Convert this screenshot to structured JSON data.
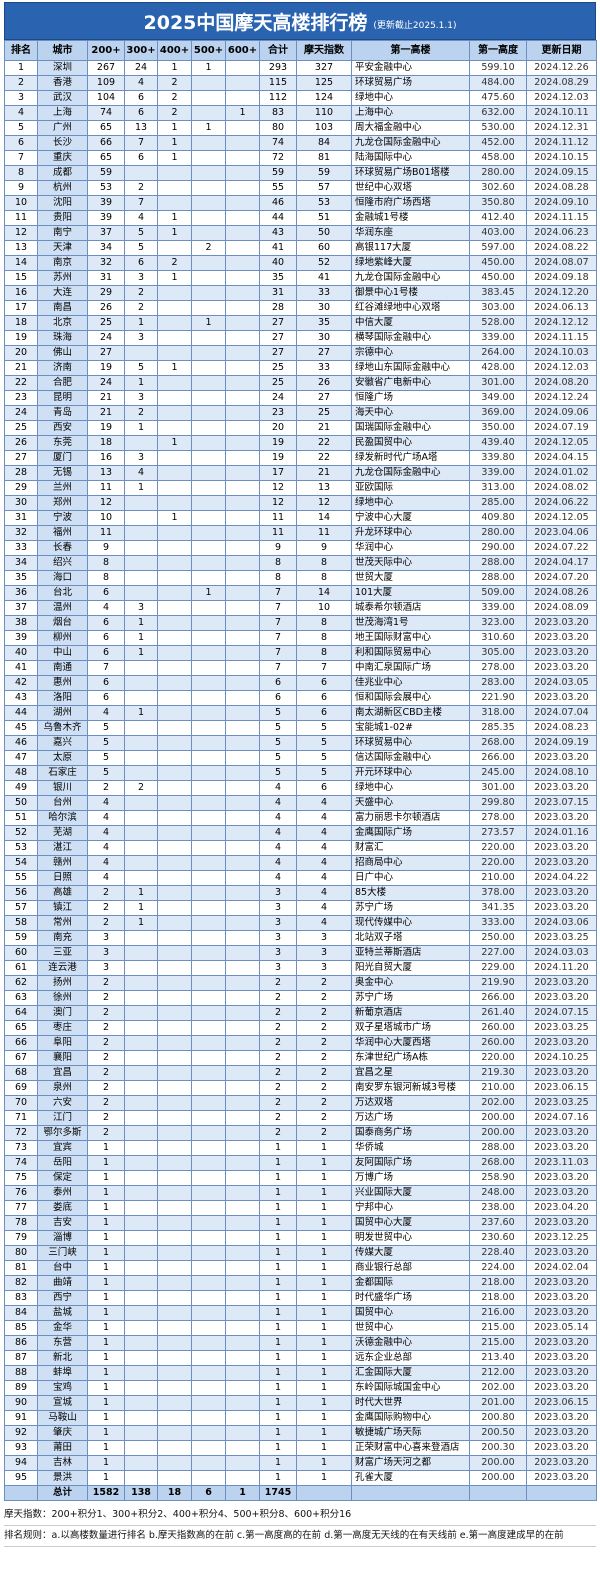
{
  "header": {
    "title": "2025中国摩天高楼排行榜",
    "subtitle": "(更新截止2025.1.1)"
  },
  "table": {
    "columns": [
      "排名",
      "城市",
      "200+",
      "300+",
      "400+",
      "500+",
      "600+",
      "合计",
      "摩天指数",
      "第一高楼",
      "第一高度",
      "更新日期"
    ],
    "rows": [
      [
        "1",
        "深圳",
        "267",
        "24",
        "1",
        "1",
        null,
        "293",
        "327",
        "平安金融中心",
        "599.10",
        "2024.12.26"
      ],
      [
        "2",
        "香港",
        "109",
        "4",
        "2",
        null,
        null,
        "115",
        "125",
        "环球贸易广场",
        "484.00",
        "2024.08.29"
      ],
      [
        "3",
        "武汉",
        "104",
        "6",
        "2",
        null,
        null,
        "112",
        "124",
        "绿地中心",
        "475.60",
        "2024.12.03"
      ],
      [
        "4",
        "上海",
        "74",
        "6",
        "2",
        null,
        "1",
        "83",
        "110",
        "上海中心",
        "632.00",
        "2024.10.11"
      ],
      [
        "5",
        "广州",
        "65",
        "13",
        "1",
        "1",
        null,
        "80",
        "103",
        "周大福金融中心",
        "530.00",
        "2024.12.31"
      ],
      [
        "6",
        "长沙",
        "66",
        "7",
        "1",
        null,
        null,
        "74",
        "84",
        "九龙仓国际金融中心",
        "452.00",
        "2024.11.12"
      ],
      [
        "7",
        "重庆",
        "65",
        "6",
        "1",
        null,
        null,
        "72",
        "81",
        "陆海国际中心",
        "458.00",
        "2024.10.15"
      ],
      [
        "8",
        "成都",
        "59",
        null,
        null,
        null,
        null,
        "59",
        "59",
        "环球贸易广场B01塔楼",
        "280.00",
        "2024.09.15"
      ],
      [
        "9",
        "杭州",
        "53",
        "2",
        null,
        null,
        null,
        "55",
        "57",
        "世纪中心双塔",
        "302.60",
        "2024.08.28"
      ],
      [
        "10",
        "沈阳",
        "39",
        "7",
        null,
        null,
        null,
        "46",
        "53",
        "恒隆市府广场西塔",
        "350.80",
        "2024.09.10"
      ],
      [
        "11",
        "贵阳",
        "39",
        "4",
        "1",
        null,
        null,
        "44",
        "51",
        "金融城1号楼",
        "412.40",
        "2024.11.15"
      ],
      [
        "12",
        "南宁",
        "37",
        "5",
        "1",
        null,
        null,
        "43",
        "50",
        "华润东座",
        "403.00",
        "2024.06.23"
      ],
      [
        "13",
        "天津",
        "34",
        "5",
        null,
        "2",
        null,
        "41",
        "60",
        "高银117大厦",
        "597.00",
        "2024.08.22"
      ],
      [
        "14",
        "南京",
        "32",
        "6",
        "2",
        null,
        null,
        "40",
        "52",
        "绿地紫峰大厦",
        "450.00",
        "2024.08.07"
      ],
      [
        "15",
        "苏州",
        "31",
        "3",
        "1",
        null,
        null,
        "35",
        "41",
        "九龙仓国际金融中心",
        "450.00",
        "2024.09.18"
      ],
      [
        "16",
        "大连",
        "29",
        "2",
        null,
        null,
        null,
        "31",
        "33",
        "御景中心1号楼",
        "383.45",
        "2024.12.20"
      ],
      [
        "17",
        "南昌",
        "26",
        "2",
        null,
        null,
        null,
        "28",
        "30",
        "红谷滩绿地中心双塔",
        "303.00",
        "2024.06.13"
      ],
      [
        "18",
        "北京",
        "25",
        "1",
        null,
        "1",
        null,
        "27",
        "35",
        "中信大厦",
        "528.00",
        "2024.12.12"
      ],
      [
        "19",
        "珠海",
        "24",
        "3",
        null,
        null,
        null,
        "27",
        "30",
        "横琴国际金融中心",
        "339.00",
        "2024.11.15"
      ],
      [
        "20",
        "佛山",
        "27",
        null,
        null,
        null,
        null,
        "27",
        "27",
        "宗德中心",
        "264.00",
        "2024.10.03"
      ],
      [
        "21",
        "济南",
        "19",
        "5",
        "1",
        null,
        null,
        "25",
        "33",
        "绿地山东国际金融中心",
        "428.00",
        "2024.12.03"
      ],
      [
        "22",
        "合肥",
        "24",
        "1",
        null,
        null,
        null,
        "25",
        "26",
        "安徽省广电新中心",
        "301.00",
        "2024.08.20"
      ],
      [
        "23",
        "昆明",
        "21",
        "3",
        null,
        null,
        null,
        "24",
        "27",
        "恒隆广场",
        "349.00",
        "2024.12.24"
      ],
      [
        "24",
        "青岛",
        "21",
        "2",
        null,
        null,
        null,
        "23",
        "25",
        "海天中心",
        "369.00",
        "2024.09.06"
      ],
      [
        "25",
        "西安",
        "19",
        "1",
        null,
        null,
        null,
        "20",
        "21",
        "国瑞国际金融中心",
        "350.00",
        "2024.07.19"
      ],
      [
        "26",
        "东莞",
        "18",
        null,
        "1",
        null,
        null,
        "19",
        "22",
        "民盈国贸中心",
        "439.40",
        "2024.12.05"
      ],
      [
        "27",
        "厦门",
        "16",
        "3",
        null,
        null,
        null,
        "19",
        "22",
        "绿发新时代广场A塔",
        "339.80",
        "2024.04.15"
      ],
      [
        "28",
        "无锡",
        "13",
        "4",
        null,
        null,
        null,
        "17",
        "21",
        "九龙仓国际金融中心",
        "339.00",
        "2024.01.02"
      ],
      [
        "29",
        "兰州",
        "11",
        "1",
        null,
        null,
        null,
        "12",
        "13",
        "亚欧国际",
        "313.00",
        "2024.08.02"
      ],
      [
        "30",
        "郑州",
        "12",
        null,
        null,
        null,
        null,
        "12",
        "12",
        "绿地中心",
        "285.00",
        "2024.06.22"
      ],
      [
        "31",
        "宁波",
        "10",
        null,
        "1",
        null,
        null,
        "11",
        "14",
        "宁波中心大厦",
        "409.80",
        "2024.12.05"
      ],
      [
        "32",
        "福州",
        "11",
        null,
        null,
        null,
        null,
        "11",
        "11",
        "升龙环球中心",
        "280.00",
        "2023.04.06"
      ],
      [
        "33",
        "长春",
        "9",
        null,
        null,
        null,
        null,
        "9",
        "9",
        "华润中心",
        "290.00",
        "2024.07.22"
      ],
      [
        "34",
        "绍兴",
        "8",
        null,
        null,
        null,
        null,
        "8",
        "8",
        "世茂天际中心",
        "288.00",
        "2024.04.17"
      ],
      [
        "35",
        "海口",
        "8",
        null,
        null,
        null,
        null,
        "8",
        "8",
        "世贸大厦",
        "288.00",
        "2024.07.20"
      ],
      [
        "36",
        "台北",
        "6",
        null,
        null,
        "1",
        null,
        "7",
        "14",
        "101大厦",
        "509.00",
        "2024.08.26"
      ],
      [
        "37",
        "温州",
        "4",
        "3",
        null,
        null,
        null,
        "7",
        "10",
        "城泰希尔顿酒店",
        "339.00",
        "2024.08.09"
      ],
      [
        "38",
        "烟台",
        "6",
        "1",
        null,
        null,
        null,
        "7",
        "8",
        "世茂海湾1号",
        "323.00",
        "2023.03.20"
      ],
      [
        "39",
        "柳州",
        "6",
        "1",
        null,
        null,
        null,
        "7",
        "8",
        "地王国际财富中心",
        "310.60",
        "2023.03.20"
      ],
      [
        "40",
        "中山",
        "6",
        "1",
        null,
        null,
        null,
        "7",
        "8",
        "利和国际贸易中心",
        "305.00",
        "2023.03.20"
      ],
      [
        "41",
        "南通",
        "7",
        null,
        null,
        null,
        null,
        "7",
        "7",
        "中南汇泉国际广场",
        "278.00",
        "2023.03.20"
      ],
      [
        "42",
        "惠州",
        "6",
        null,
        null,
        null,
        null,
        "6",
        "6",
        "佳兆业中心",
        "283.00",
        "2024.03.05"
      ],
      [
        "43",
        "洛阳",
        "6",
        null,
        null,
        null,
        null,
        "6",
        "6",
        "恒和国际会展中心",
        "221.90",
        "2023.03.20"
      ],
      [
        "44",
        "湖州",
        "4",
        "1",
        null,
        null,
        null,
        "5",
        "6",
        "南太湖新区CBD主楼",
        "318.00",
        "2024.07.04"
      ],
      [
        "45",
        "乌鲁木齐",
        "5",
        null,
        null,
        null,
        null,
        "5",
        "5",
        "宝能城1-02#",
        "285.35",
        "2024.08.23"
      ],
      [
        "46",
        "嘉兴",
        "5",
        null,
        null,
        null,
        null,
        "5",
        "5",
        "环球贸易中心",
        "268.00",
        "2024.09.19"
      ],
      [
        "47",
        "太原",
        "5",
        null,
        null,
        null,
        null,
        "5",
        "5",
        "信达国际金融中心",
        "266.00",
        "2023.03.20"
      ],
      [
        "48",
        "石家庄",
        "5",
        null,
        null,
        null,
        null,
        "5",
        "5",
        "开元环球中心",
        "245.00",
        "2024.08.10"
      ],
      [
        "49",
        "银川",
        "2",
        "2",
        null,
        null,
        null,
        "4",
        "6",
        "绿地中心",
        "301.00",
        "2023.03.20"
      ],
      [
        "50",
        "台州",
        "4",
        null,
        null,
        null,
        null,
        "4",
        "4",
        "天盛中心",
        "299.80",
        "2023.07.15"
      ],
      [
        "51",
        "哈尔滨",
        "4",
        null,
        null,
        null,
        null,
        "4",
        "4",
        "富力丽思卡尔顿酒店",
        "278.00",
        "2023.03.20"
      ],
      [
        "52",
        "芜湖",
        "4",
        null,
        null,
        null,
        null,
        "4",
        "4",
        "金鹰国际广场",
        "273.57",
        "2024.01.16"
      ],
      [
        "53",
        "湛江",
        "4",
        null,
        null,
        null,
        null,
        "4",
        "4",
        "财富汇",
        "220.00",
        "2023.03.20"
      ],
      [
        "54",
        "赣州",
        "4",
        null,
        null,
        null,
        null,
        "4",
        "4",
        "招商局中心",
        "220.00",
        "2023.03.20"
      ],
      [
        "55",
        "日照",
        "4",
        null,
        null,
        null,
        null,
        "4",
        "4",
        "日广中心",
        "210.00",
        "2024.04.22"
      ],
      [
        "56",
        "高雄",
        "2",
        "1",
        null,
        null,
        null,
        "3",
        "4",
        "85大楼",
        "378.00",
        "2023.03.20"
      ],
      [
        "57",
        "镇江",
        "2",
        "1",
        null,
        null,
        null,
        "3",
        "4",
        "苏宁广场",
        "341.35",
        "2023.03.20"
      ],
      [
        "58",
        "常州",
        "2",
        "1",
        null,
        null,
        null,
        "3",
        "4",
        "现代传媒中心",
        "333.00",
        "2024.03.06"
      ],
      [
        "59",
        "南充",
        "3",
        null,
        null,
        null,
        null,
        "3",
        "3",
        "北站双子塔",
        "250.00",
        "2023.03.25"
      ],
      [
        "60",
        "三亚",
        "3",
        null,
        null,
        null,
        null,
        "3",
        "3",
        "亚特兰蒂斯酒店",
        "227.00",
        "2024.03.03"
      ],
      [
        "61",
        "连云港",
        "3",
        null,
        null,
        null,
        null,
        "3",
        "3",
        "阳光自贸大厦",
        "229.00",
        "2024.11.20"
      ],
      [
        "62",
        "扬州",
        "2",
        null,
        null,
        null,
        null,
        "2",
        "2",
        "奥金中心",
        "219.90",
        "2023.03.20"
      ],
      [
        "63",
        "徐州",
        "2",
        null,
        null,
        null,
        null,
        "2",
        "2",
        "苏宁广场",
        "266.00",
        "2023.03.20"
      ],
      [
        "64",
        "澳门",
        "2",
        null,
        null,
        null,
        null,
        "2",
        "2",
        "新葡京酒店",
        "261.40",
        "2024.07.15"
      ],
      [
        "65",
        "枣庄",
        "2",
        null,
        null,
        null,
        null,
        "2",
        "2",
        "双子星塔城市广场",
        "260.00",
        "2023.03.25"
      ],
      [
        "66",
        "阜阳",
        "2",
        null,
        null,
        null,
        null,
        "2",
        "2",
        "华润中心大厦西塔",
        "260.00",
        "2023.03.20"
      ],
      [
        "67",
        "襄阳",
        "2",
        null,
        null,
        null,
        null,
        "2",
        "2",
        "东津世纪广场A栋",
        "220.00",
        "2024.10.25"
      ],
      [
        "68",
        "宜昌",
        "2",
        null,
        null,
        null,
        null,
        "2",
        "2",
        "宜昌之星",
        "219.30",
        "2023.03.20"
      ],
      [
        "69",
        "泉州",
        "2",
        null,
        null,
        null,
        null,
        "2",
        "2",
        "南安罗东银河新城3号楼",
        "210.00",
        "2023.06.15"
      ],
      [
        "70",
        "六安",
        "2",
        null,
        null,
        null,
        null,
        "2",
        "2",
        "万达双塔",
        "202.00",
        "2023.03.25"
      ],
      [
        "71",
        "江门",
        "2",
        null,
        null,
        null,
        null,
        "2",
        "2",
        "万达广场",
        "200.00",
        "2024.07.16"
      ],
      [
        "72",
        "鄂尔多斯",
        "2",
        null,
        null,
        null,
        null,
        "2",
        "2",
        "国泰商务广场",
        "200.00",
        "2023.03.20"
      ],
      [
        "73",
        "宜宾",
        "1",
        null,
        null,
        null,
        null,
        "1",
        "1",
        "华侨城",
        "288.00",
        "2023.03.20"
      ],
      [
        "74",
        "岳阳",
        "1",
        null,
        null,
        null,
        null,
        "1",
        "1",
        "友阿国际广场",
        "268.00",
        "2023.11.03"
      ],
      [
        "75",
        "保定",
        "1",
        null,
        null,
        null,
        null,
        "1",
        "1",
        "万博广场",
        "258.90",
        "2023.03.20"
      ],
      [
        "76",
        "泰州",
        "1",
        null,
        null,
        null,
        null,
        "1",
        "1",
        "兴业国际大厦",
        "248.00",
        "2023.03.20"
      ],
      [
        "77",
        "娄底",
        "1",
        null,
        null,
        null,
        null,
        "1",
        "1",
        "宁邦中心",
        "238.00",
        "2023.04.20"
      ],
      [
        "78",
        "吉安",
        "1",
        null,
        null,
        null,
        null,
        "1",
        "1",
        "国贸中心大厦",
        "237.60",
        "2023.03.20"
      ],
      [
        "79",
        "淄博",
        "1",
        null,
        null,
        null,
        null,
        "1",
        "1",
        "明发世贸中心",
        "230.60",
        "2023.12.25"
      ],
      [
        "80",
        "三门峡",
        "1",
        null,
        null,
        null,
        null,
        "1",
        "1",
        "传媒大厦",
        "228.40",
        "2023.03.20"
      ],
      [
        "81",
        "台中",
        "1",
        null,
        null,
        null,
        null,
        "1",
        "1",
        "商业银行总部",
        "224.00",
        "2024.02.04"
      ],
      [
        "82",
        "曲靖",
        "1",
        null,
        null,
        null,
        null,
        "1",
        "1",
        "金都国际",
        "218.00",
        "2023.03.20"
      ],
      [
        "83",
        "西宁",
        "1",
        null,
        null,
        null,
        null,
        "1",
        "1",
        "时代盛华广场",
        "218.00",
        "2023.03.20"
      ],
      [
        "84",
        "盐城",
        "1",
        null,
        null,
        null,
        null,
        "1",
        "1",
        "国贸中心",
        "216.00",
        "2023.03.20"
      ],
      [
        "85",
        "金华",
        "1",
        null,
        null,
        null,
        null,
        "1",
        "1",
        "世贸中心",
        "215.00",
        "2023.05.14"
      ],
      [
        "86",
        "东营",
        "1",
        null,
        null,
        null,
        null,
        "1",
        "1",
        "沃德金融中心",
        "215.00",
        "2023.03.20"
      ],
      [
        "87",
        "新北",
        "1",
        null,
        null,
        null,
        null,
        "1",
        "1",
        "远东企业总部",
        "213.40",
        "2023.03.20"
      ],
      [
        "88",
        "蚌埠",
        "1",
        null,
        null,
        null,
        null,
        "1",
        "1",
        "汇金国际大厦",
        "212.00",
        "2023.03.20"
      ],
      [
        "89",
        "宝鸡",
        "1",
        null,
        null,
        null,
        null,
        "1",
        "1",
        "东岭国际城国金中心",
        "202.00",
        "2023.03.20"
      ],
      [
        "90",
        "宣城",
        "1",
        null,
        null,
        null,
        null,
        "1",
        "1",
        "时代大世界",
        "201.00",
        "2023.06.15"
      ],
      [
        "91",
        "马鞍山",
        "1",
        null,
        null,
        null,
        null,
        "1",
        "1",
        "金鹰国际购物中心",
        "200.80",
        "2023.03.20"
      ],
      [
        "92",
        "肇庆",
        "1",
        null,
        null,
        null,
        null,
        "1",
        "1",
        "敏捷城广场天际",
        "200.50",
        "2023.03.20"
      ],
      [
        "93",
        "莆田",
        "1",
        null,
        null,
        null,
        null,
        "1",
        "1",
        "正荣财富中心喜来登酒店",
        "200.30",
        "2023.03.20"
      ],
      [
        "94",
        "吉林",
        "1",
        null,
        null,
        null,
        null,
        "1",
        "1",
        "财富广场天河之都",
        "200.00",
        "2023.03.20"
      ],
      [
        "95",
        "景洪",
        "1",
        null,
        null,
        null,
        null,
        "1",
        "1",
        "孔雀大厦",
        "200.00",
        "2023.03.20"
      ]
    ],
    "total": [
      null,
      "总计",
      "1582",
      "138",
      "18",
      "6",
      "1",
      "1745",
      null,
      null,
      null,
      null
    ]
  },
  "footer": {
    "index_note": "摩天指数：200+积分1、300+积分2、400+积分4、500+积分8、600+积分16",
    "rank_rule": "排名规则：a.以高楼数量进行排名 b.摩天指数高的在前 c.第一高度高的在前 d.第一高度无天线的在有天线前 e.第一高度建成早的在前"
  }
}
